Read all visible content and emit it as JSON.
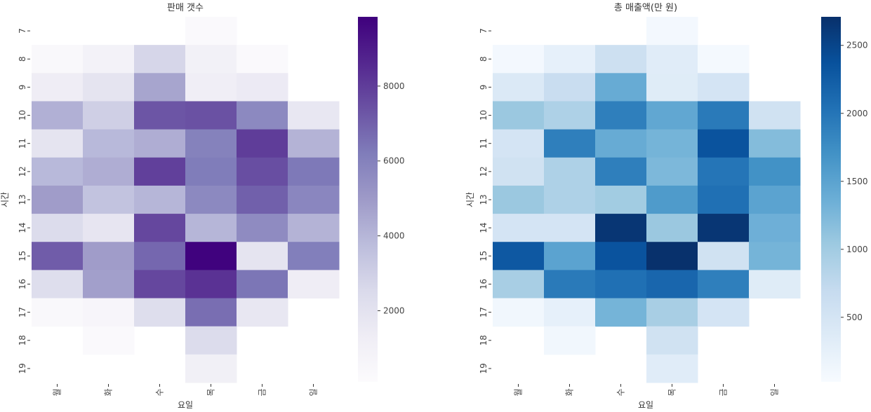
{
  "chart_data": [
    {
      "type": "heatmap",
      "title": "판매 갯수",
      "xlabel": "요일",
      "ylabel": "시간",
      "x_categories": [
        "월",
        "화",
        "수",
        "목",
        "금",
        "일"
      ],
      "y_categories": [
        "7",
        "8",
        "9",
        "10",
        "11",
        "12",
        "13",
        "14",
        "15",
        "16",
        "17",
        "18",
        "19"
      ],
      "colormap": "Purples",
      "color_low": "#fcfbfd",
      "color_high": "#3f007d",
      "vmin": 100,
      "vmax": 9850,
      "colorbar_ticks": [
        "2000",
        "4000",
        "6000",
        "8000"
      ],
      "colorbar_tick_values": [
        2000,
        4000,
        6000,
        8000
      ],
      "values": [
        [
          null,
          null,
          null,
          300,
          null,
          null
        ],
        [
          400,
          900,
          2700,
          1000,
          300,
          null
        ],
        [
          1300,
          1900,
          4600,
          1200,
          1500,
          null
        ],
        [
          4200,
          3000,
          7300,
          7400,
          5700,
          1700
        ],
        [
          1900,
          3900,
          4300,
          6000,
          8000,
          4100
        ],
        [
          3900,
          4300,
          7900,
          6200,
          7500,
          6300
        ],
        [
          4900,
          3500,
          4000,
          5700,
          7000,
          5800
        ],
        [
          2400,
          1800,
          7700,
          4000,
          5600,
          4100
        ],
        [
          7100,
          4900,
          6800,
          9800,
          1900,
          6100
        ],
        [
          2300,
          4800,
          7700,
          8300,
          6400,
          1300
        ],
        [
          400,
          600,
          2300,
          6600,
          1700,
          null
        ],
        [
          null,
          300,
          null,
          2400,
          null,
          null
        ],
        [
          null,
          null,
          null,
          1100,
          null,
          null
        ]
      ]
    },
    {
      "type": "heatmap",
      "title": "총 매출액(만 원)",
      "xlabel": "요일",
      "ylabel": "시간",
      "x_categories": [
        "월",
        "화",
        "수",
        "목",
        "금",
        "일"
      ],
      "y_categories": [
        "7",
        "8",
        "9",
        "10",
        "11",
        "12",
        "13",
        "14",
        "15",
        "16",
        "17",
        "18",
        "19"
      ],
      "colormap": "Blues",
      "color_low": "#f7fbff",
      "color_high": "#08306b",
      "vmin": 25,
      "vmax": 2710,
      "colorbar_ticks": [
        "500",
        "1000",
        "1500",
        "2000",
        "2500"
      ],
      "colorbar_tick_values": [
        500,
        1000,
        1500,
        2000,
        2500
      ],
      "values": [
        [
          null,
          null,
          null,
          80,
          null,
          null
        ],
        [
          80,
          250,
          600,
          330,
          60,
          null
        ],
        [
          400,
          650,
          1400,
          350,
          500,
          null
        ],
        [
          1050,
          900,
          1900,
          1450,
          1950,
          550
        ],
        [
          500,
          1900,
          1400,
          1300,
          2350,
          1200
        ],
        [
          550,
          900,
          1900,
          1250,
          2000,
          1700
        ],
        [
          1050,
          900,
          1000,
          1600,
          2050,
          1500
        ],
        [
          500,
          500,
          2650,
          1050,
          2650,
          1350
        ],
        [
          2300,
          1500,
          2350,
          2700,
          550,
          1300
        ],
        [
          950,
          1950,
          2050,
          2150,
          1900,
          350
        ],
        [
          100,
          250,
          1300,
          950,
          500,
          null
        ],
        [
          null,
          100,
          null,
          550,
          null,
          null
        ],
        [
          null,
          null,
          null,
          330,
          null,
          null
        ]
      ]
    }
  ]
}
